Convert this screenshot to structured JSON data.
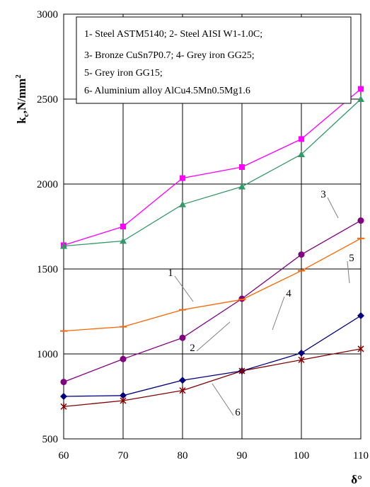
{
  "chart_data": {
    "type": "line",
    "ylabel": "kc,N/mm2",
    "ylabel_parts": {
      "main": "k",
      "sub": "c",
      "unit": ",N/mm",
      "sup": "2"
    },
    "xlabel": "δ°",
    "xlim": [
      60,
      110
    ],
    "ylim": [
      500,
      3000
    ],
    "x": [
      60,
      70,
      80,
      90,
      100,
      110
    ],
    "x_tick_labels": [
      "60",
      "70",
      "80",
      "90",
      "100",
      "110"
    ],
    "y_ticks": [
      500,
      1000,
      1500,
      2000,
      2500,
      3000
    ],
    "y_tick_labels": [
      "500",
      "1000",
      "1500",
      "2000",
      "2500",
      "3000"
    ],
    "grid": true,
    "legend": [
      "1- Steel ASTM5140; 2- Steel AISI W1-1.0C;",
      "3- Bronze CuSn7P0.7; 4- Grey iron GG25;",
      "5- Grey iron GG15;",
      "6- Aluminium alloy AlCu4.5Mn0.5Mg1.6"
    ],
    "legend_position": "top",
    "series": [
      {
        "name": "1",
        "color": "#ff00ff",
        "marker": "square",
        "values": [
          1640,
          1750,
          2035,
          2100,
          2265,
          2560
        ]
      },
      {
        "name": "2",
        "color": "#339966",
        "marker": "triangle",
        "values": [
          1635,
          1665,
          1880,
          1985,
          2175,
          2500
        ]
      },
      {
        "name": "3",
        "color": "#800080",
        "marker": "circle",
        "values": [
          835,
          970,
          1095,
          1325,
          1585,
          1785
        ]
      },
      {
        "name": "4",
        "color": "#ff6600",
        "marker": "dash",
        "values": [
          1135,
          1160,
          1260,
          1320,
          1490,
          1680
        ]
      },
      {
        "name": "5",
        "color": "#000080",
        "marker": "diamond",
        "values": [
          750,
          755,
          845,
          900,
          1005,
          1225
        ]
      },
      {
        "name": "6",
        "color": "#800000",
        "marker": "star",
        "values": [
          690,
          725,
          785,
          900,
          965,
          1030
        ]
      }
    ]
  }
}
